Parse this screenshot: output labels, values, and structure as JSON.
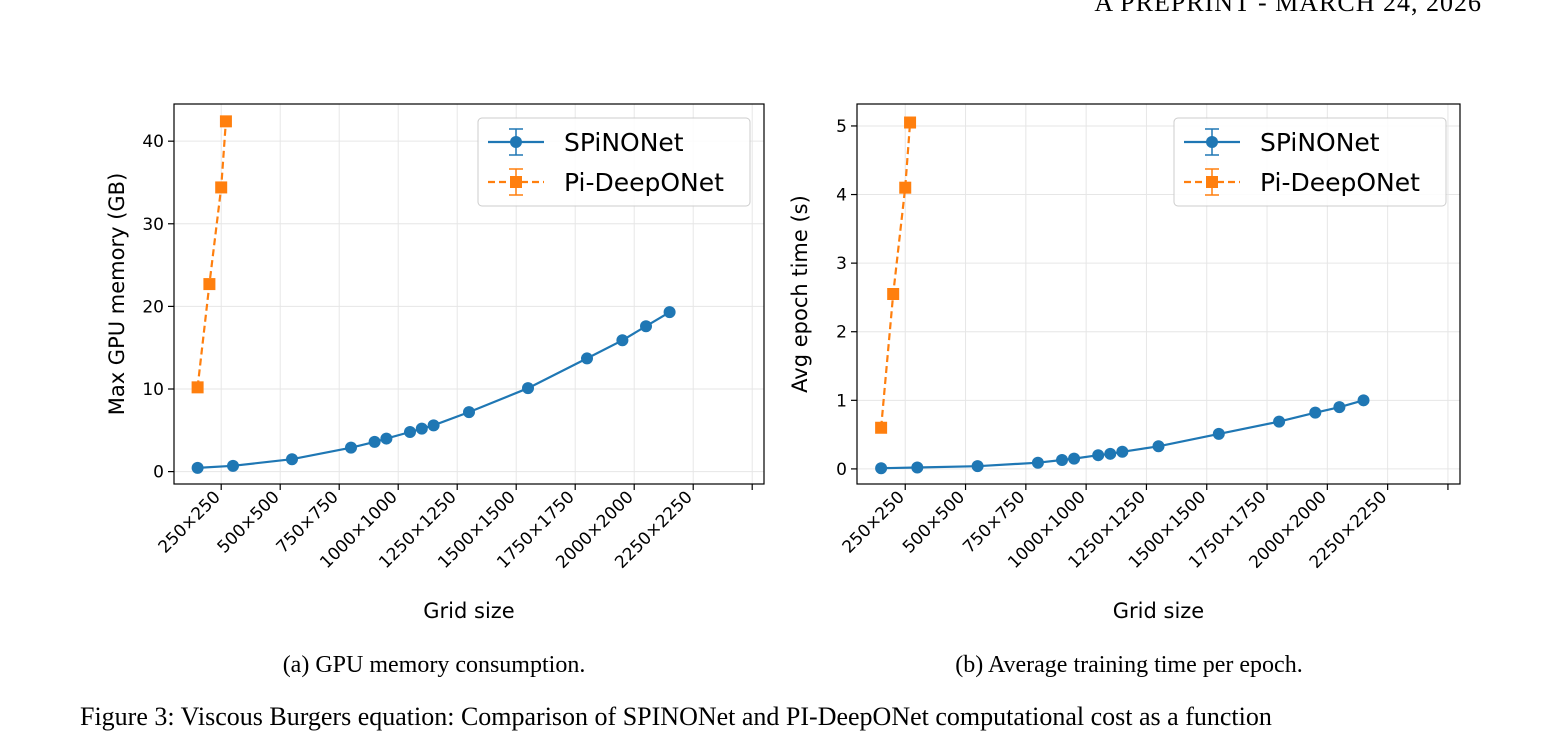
{
  "header": {
    "running": "A PREPRINT - MARCH 24, 2026"
  },
  "captions": {
    "a": "(a) GPU memory consumption.",
    "b": "(b) Average training time per epoch.",
    "figure": "Figure 3: Viscous Burgers equation: Comparison of SPINONet and PI-DeepONet computational cost as a function"
  },
  "colors": {
    "spinonet": "#1f77b4",
    "pideeponet": "#ff7f0e",
    "grid": "#e6e6e6",
    "axis": "#000000"
  },
  "chart_data": [
    {
      "type": "line",
      "xlabel": "Grid size",
      "ylabel": "Max GPU memory (GB)",
      "xlim": [
        50,
        2550
      ],
      "ylim": [
        -1.5,
        44.5
      ],
      "xticks": [
        250,
        500,
        750,
        1000,
        1250,
        1500,
        1750,
        2000,
        2250,
        2500
      ],
      "xtick_labels": [
        "250×250",
        "500×500",
        "750×750",
        "1000×1000",
        "1250×1250",
        "1500×1500",
        "1750×1750",
        "2000×2000",
        "2250×2250",
        ""
      ],
      "yticks": [
        0,
        10,
        20,
        30,
        40
      ],
      "grid": true,
      "legend": "top-right",
      "series": [
        {
          "name": "SPiNONet",
          "style": "solid",
          "marker": "circle",
          "x": [
            150,
            300,
            550,
            800,
            900,
            950,
            1050,
            1100,
            1150,
            1300,
            1550,
            1800,
            1950,
            2050,
            2150
          ],
          "y": [
            0.45,
            0.7,
            1.5,
            2.9,
            3.6,
            4.0,
            4.8,
            5.2,
            5.6,
            7.2,
            10.1,
            13.7,
            15.9,
            17.6,
            19.3
          ]
        },
        {
          "name": "Pi-DeepONet",
          "style": "dashed",
          "marker": "square",
          "x": [
            150,
            200,
            250,
            270
          ],
          "y": [
            10.2,
            22.7,
            34.4,
            42.4
          ]
        }
      ]
    },
    {
      "type": "line",
      "xlabel": "Grid size",
      "ylabel": "Avg epoch time (s)",
      "xlim": [
        50,
        2550
      ],
      "ylim": [
        -0.22,
        5.32
      ],
      "xticks": [
        250,
        500,
        750,
        1000,
        1250,
        1500,
        1750,
        2000,
        2250,
        2500
      ],
      "xtick_labels": [
        "250×250",
        "500×500",
        "750×750",
        "1000×1000",
        "1250×1250",
        "1500×1500",
        "1750×1750",
        "2000×2000",
        "2250×2250",
        ""
      ],
      "yticks": [
        0,
        1,
        2,
        3,
        4,
        5
      ],
      "grid": true,
      "legend": "top-right",
      "series": [
        {
          "name": "SPiNONet",
          "style": "solid",
          "marker": "circle",
          "x": [
            150,
            300,
            550,
            800,
            900,
            950,
            1050,
            1100,
            1150,
            1300,
            1550,
            1800,
            1950,
            2050,
            2150
          ],
          "y": [
            0.01,
            0.02,
            0.04,
            0.09,
            0.13,
            0.15,
            0.2,
            0.22,
            0.25,
            0.33,
            0.51,
            0.69,
            0.82,
            0.9,
            1.0
          ]
        },
        {
          "name": "Pi-DeepONet",
          "style": "dashed",
          "marker": "square",
          "x": [
            150,
            200,
            250,
            270
          ],
          "y": [
            0.6,
            2.55,
            4.1,
            5.05
          ]
        }
      ]
    }
  ]
}
